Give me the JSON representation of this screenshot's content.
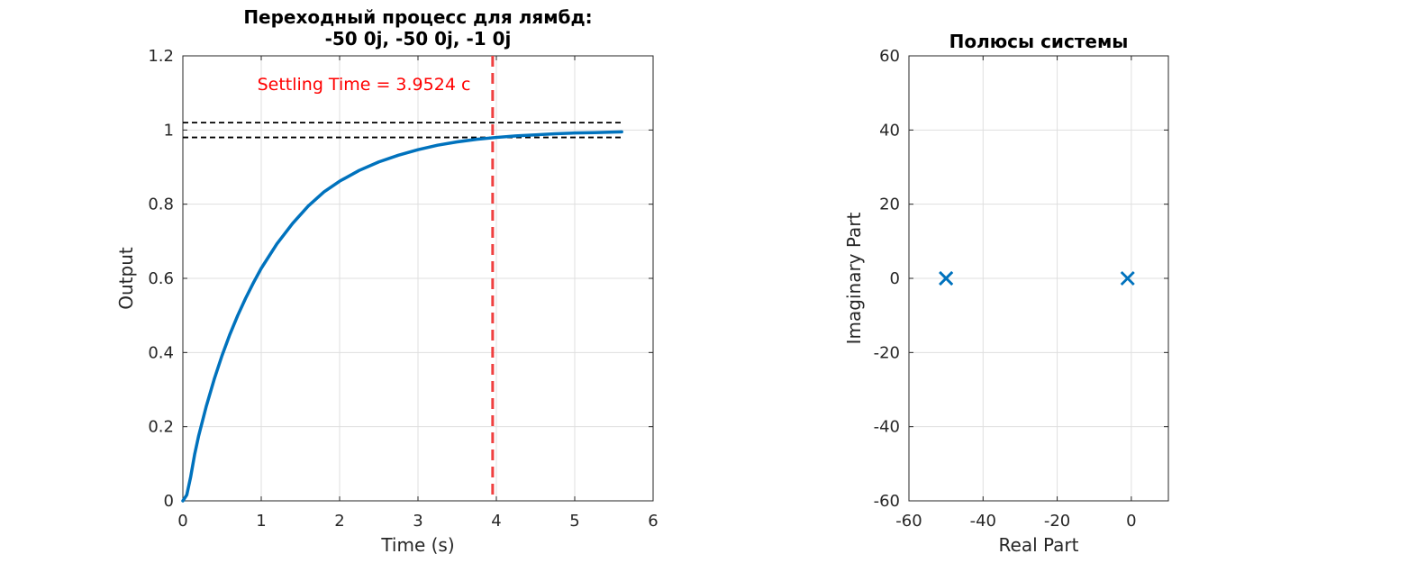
{
  "chart_data": [
    {
      "type": "line",
      "title": "Переходный процесс для лямбд:",
      "subtitle": "-50 0j, -50 0j, -1 0j",
      "xlabel": "Time (s)",
      "ylabel": "Output",
      "xlim": [
        0,
        6
      ],
      "ylim": [
        0,
        1.2
      ],
      "xticks": [
        0,
        1,
        2,
        3,
        4,
        5,
        6
      ],
      "yticks": [
        0,
        0.2,
        0.4,
        0.6,
        0.8,
        1,
        1.2
      ],
      "grid": true,
      "series": [
        {
          "color": "#0072bd",
          "x": [
            0,
            0.05,
            0.1,
            0.15,
            0.2,
            0.3,
            0.4,
            0.5,
            0.6,
            0.7,
            0.8,
            0.9,
            1.0,
            1.2,
            1.4,
            1.6,
            1.8,
            2.0,
            2.25,
            2.5,
            2.75,
            3.0,
            3.25,
            3.5,
            3.75,
            4.0,
            4.25,
            4.5,
            4.75,
            5.0,
            5.25,
            5.6
          ],
          "y": [
            0,
            0.016,
            0.065,
            0.125,
            0.174,
            0.256,
            0.328,
            0.392,
            0.449,
            0.5,
            0.546,
            0.588,
            0.627,
            0.693,
            0.748,
            0.795,
            0.833,
            0.862,
            0.891,
            0.914,
            0.932,
            0.947,
            0.959,
            0.968,
            0.975,
            0.98,
            0.984,
            0.987,
            0.99,
            0.992,
            0.993,
            0.995
          ]
        }
      ],
      "settling_band": [
        0.98,
        1.02
      ],
      "settling_band_color": "#000000",
      "settling_time": 3.9524,
      "settling_line_color": "#ef4040",
      "annotation": "Settling Time = 3.9524 с"
    },
    {
      "type": "scatter",
      "title": "Полюсы системы",
      "xlabel": "Real Part",
      "ylabel": "Imaginary Part",
      "xlim": [
        -60,
        10
      ],
      "ylim": [
        -60,
        60
      ],
      "xticks": [
        -60,
        -40,
        -20,
        0
      ],
      "yticks": [
        -60,
        -40,
        -20,
        0,
        20,
        40,
        60
      ],
      "grid": true,
      "marker": "x",
      "color": "#0072bd",
      "points": [
        {
          "x": -50,
          "y": 0
        },
        {
          "x": -50,
          "y": 0
        },
        {
          "x": -1,
          "y": 0
        }
      ]
    }
  ]
}
